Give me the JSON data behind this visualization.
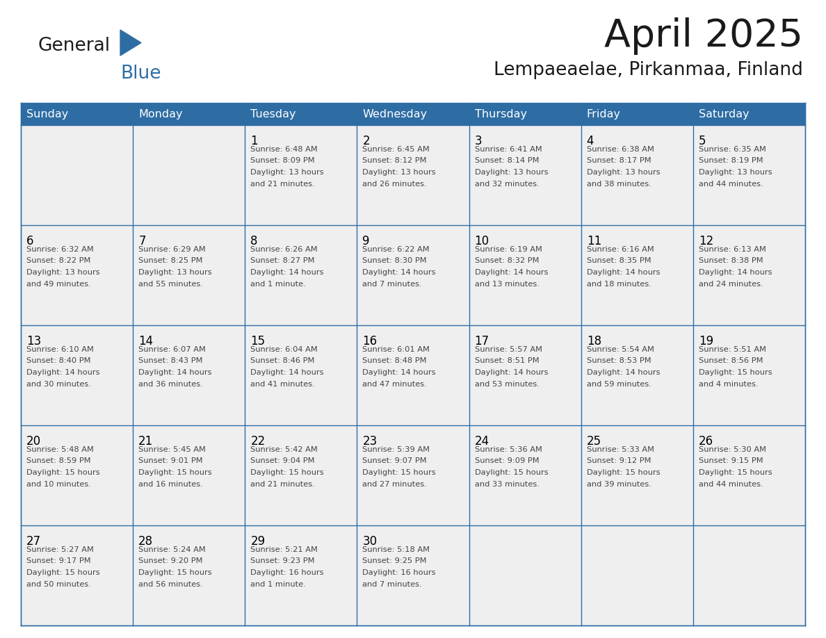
{
  "title": "April 2025",
  "subtitle": "Lempaeaelae, Pirkanmaa, Finland",
  "header_bg_color": "#2E6DA4",
  "header_text_color": "#FFFFFF",
  "day_names": [
    "Sunday",
    "Monday",
    "Tuesday",
    "Wednesday",
    "Thursday",
    "Friday",
    "Saturday"
  ],
  "cell_bg_color": "#EFEFEF",
  "border_color": "#2E6DA4",
  "day_number_color": "#000000",
  "day_text_color": "#444444",
  "title_color": "#1a1a1a",
  "subtitle_color": "#1a1a1a",
  "blue_color": "#2E6DA4",
  "weeks": [
    [
      {
        "day": "",
        "sunrise": "",
        "sunset": "",
        "daylight": ""
      },
      {
        "day": "",
        "sunrise": "",
        "sunset": "",
        "daylight": ""
      },
      {
        "day": "1",
        "sunrise": "Sunrise: 6:48 AM",
        "sunset": "Sunset: 8:09 PM",
        "daylight": "Daylight: 13 hours\nand 21 minutes."
      },
      {
        "day": "2",
        "sunrise": "Sunrise: 6:45 AM",
        "sunset": "Sunset: 8:12 PM",
        "daylight": "Daylight: 13 hours\nand 26 minutes."
      },
      {
        "day": "3",
        "sunrise": "Sunrise: 6:41 AM",
        "sunset": "Sunset: 8:14 PM",
        "daylight": "Daylight: 13 hours\nand 32 minutes."
      },
      {
        "day": "4",
        "sunrise": "Sunrise: 6:38 AM",
        "sunset": "Sunset: 8:17 PM",
        "daylight": "Daylight: 13 hours\nand 38 minutes."
      },
      {
        "day": "5",
        "sunrise": "Sunrise: 6:35 AM",
        "sunset": "Sunset: 8:19 PM",
        "daylight": "Daylight: 13 hours\nand 44 minutes."
      }
    ],
    [
      {
        "day": "6",
        "sunrise": "Sunrise: 6:32 AM",
        "sunset": "Sunset: 8:22 PM",
        "daylight": "Daylight: 13 hours\nand 49 minutes."
      },
      {
        "day": "7",
        "sunrise": "Sunrise: 6:29 AM",
        "sunset": "Sunset: 8:25 PM",
        "daylight": "Daylight: 13 hours\nand 55 minutes."
      },
      {
        "day": "8",
        "sunrise": "Sunrise: 6:26 AM",
        "sunset": "Sunset: 8:27 PM",
        "daylight": "Daylight: 14 hours\nand 1 minute."
      },
      {
        "day": "9",
        "sunrise": "Sunrise: 6:22 AM",
        "sunset": "Sunset: 8:30 PM",
        "daylight": "Daylight: 14 hours\nand 7 minutes."
      },
      {
        "day": "10",
        "sunrise": "Sunrise: 6:19 AM",
        "sunset": "Sunset: 8:32 PM",
        "daylight": "Daylight: 14 hours\nand 13 minutes."
      },
      {
        "day": "11",
        "sunrise": "Sunrise: 6:16 AM",
        "sunset": "Sunset: 8:35 PM",
        "daylight": "Daylight: 14 hours\nand 18 minutes."
      },
      {
        "day": "12",
        "sunrise": "Sunrise: 6:13 AM",
        "sunset": "Sunset: 8:38 PM",
        "daylight": "Daylight: 14 hours\nand 24 minutes."
      }
    ],
    [
      {
        "day": "13",
        "sunrise": "Sunrise: 6:10 AM",
        "sunset": "Sunset: 8:40 PM",
        "daylight": "Daylight: 14 hours\nand 30 minutes."
      },
      {
        "day": "14",
        "sunrise": "Sunrise: 6:07 AM",
        "sunset": "Sunset: 8:43 PM",
        "daylight": "Daylight: 14 hours\nand 36 minutes."
      },
      {
        "day": "15",
        "sunrise": "Sunrise: 6:04 AM",
        "sunset": "Sunset: 8:46 PM",
        "daylight": "Daylight: 14 hours\nand 41 minutes."
      },
      {
        "day": "16",
        "sunrise": "Sunrise: 6:01 AM",
        "sunset": "Sunset: 8:48 PM",
        "daylight": "Daylight: 14 hours\nand 47 minutes."
      },
      {
        "day": "17",
        "sunrise": "Sunrise: 5:57 AM",
        "sunset": "Sunset: 8:51 PM",
        "daylight": "Daylight: 14 hours\nand 53 minutes."
      },
      {
        "day": "18",
        "sunrise": "Sunrise: 5:54 AM",
        "sunset": "Sunset: 8:53 PM",
        "daylight": "Daylight: 14 hours\nand 59 minutes."
      },
      {
        "day": "19",
        "sunrise": "Sunrise: 5:51 AM",
        "sunset": "Sunset: 8:56 PM",
        "daylight": "Daylight: 15 hours\nand 4 minutes."
      }
    ],
    [
      {
        "day": "20",
        "sunrise": "Sunrise: 5:48 AM",
        "sunset": "Sunset: 8:59 PM",
        "daylight": "Daylight: 15 hours\nand 10 minutes."
      },
      {
        "day": "21",
        "sunrise": "Sunrise: 5:45 AM",
        "sunset": "Sunset: 9:01 PM",
        "daylight": "Daylight: 15 hours\nand 16 minutes."
      },
      {
        "day": "22",
        "sunrise": "Sunrise: 5:42 AM",
        "sunset": "Sunset: 9:04 PM",
        "daylight": "Daylight: 15 hours\nand 21 minutes."
      },
      {
        "day": "23",
        "sunrise": "Sunrise: 5:39 AM",
        "sunset": "Sunset: 9:07 PM",
        "daylight": "Daylight: 15 hours\nand 27 minutes."
      },
      {
        "day": "24",
        "sunrise": "Sunrise: 5:36 AM",
        "sunset": "Sunset: 9:09 PM",
        "daylight": "Daylight: 15 hours\nand 33 minutes."
      },
      {
        "day": "25",
        "sunrise": "Sunrise: 5:33 AM",
        "sunset": "Sunset: 9:12 PM",
        "daylight": "Daylight: 15 hours\nand 39 minutes."
      },
      {
        "day": "26",
        "sunrise": "Sunrise: 5:30 AM",
        "sunset": "Sunset: 9:15 PM",
        "daylight": "Daylight: 15 hours\nand 44 minutes."
      }
    ],
    [
      {
        "day": "27",
        "sunrise": "Sunrise: 5:27 AM",
        "sunset": "Sunset: 9:17 PM",
        "daylight": "Daylight: 15 hours\nand 50 minutes."
      },
      {
        "day": "28",
        "sunrise": "Sunrise: 5:24 AM",
        "sunset": "Sunset: 9:20 PM",
        "daylight": "Daylight: 15 hours\nand 56 minutes."
      },
      {
        "day": "29",
        "sunrise": "Sunrise: 5:21 AM",
        "sunset": "Sunset: 9:23 PM",
        "daylight": "Daylight: 16 hours\nand 1 minute."
      },
      {
        "day": "30",
        "sunrise": "Sunrise: 5:18 AM",
        "sunset": "Sunset: 9:25 PM",
        "daylight": "Daylight: 16 hours\nand 7 minutes."
      },
      {
        "day": "",
        "sunrise": "",
        "sunset": "",
        "daylight": ""
      },
      {
        "day": "",
        "sunrise": "",
        "sunset": "",
        "daylight": ""
      },
      {
        "day": "",
        "sunrise": "",
        "sunset": "",
        "daylight": ""
      }
    ]
  ]
}
